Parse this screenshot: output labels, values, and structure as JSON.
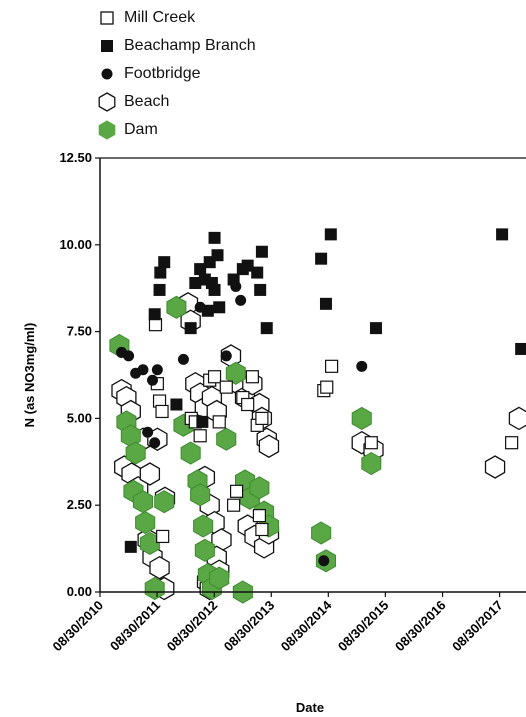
{
  "chart_data": {
    "type": "scatter",
    "xlabel": "Date",
    "ylabel": "N (as NO3mg/ml)",
    "ylim": [
      0,
      12.5
    ],
    "xlim": [
      "2010-08-30",
      "2018-02-15"
    ],
    "y_ticks": [
      "0.00",
      "2.50",
      "5.00",
      "7.50",
      "10.00",
      "12.50"
    ],
    "x_ticks": [
      "08/30/2010",
      "08/30/2011",
      "08/30/2012",
      "08/30/2013",
      "08/30/2014",
      "08/30/2015",
      "08/30/2016",
      "08/30/2017"
    ],
    "grid": false,
    "legend_position": "top-left",
    "series": [
      {
        "name": "Mill Creek",
        "marker": "open-square",
        "points": [
          [
            "2011-08-20",
            7.7
          ],
          [
            "2011-09-15",
            5.5
          ],
          [
            "2011-10-01",
            5.2
          ],
          [
            "2011-09-01",
            6.0
          ],
          [
            "2011-10-05",
            1.6
          ],
          [
            "2012-04-05",
            5.0
          ],
          [
            "2012-05-01",
            4.9
          ],
          [
            "2012-06-01",
            4.5
          ],
          [
            "2012-08-01",
            6.1
          ],
          [
            "2012-09-01",
            6.2
          ],
          [
            "2012-10-01",
            4.9
          ],
          [
            "2012-11-15",
            5.9
          ],
          [
            "2013-01-01",
            2.5
          ],
          [
            "2013-01-20",
            2.9
          ],
          [
            "2013-03-01",
            5.6
          ],
          [
            "2013-04-01",
            5.4
          ],
          [
            "2013-05-01",
            6.2
          ],
          [
            "2013-06-01",
            4.8
          ],
          [
            "2013-07-01",
            5.0
          ],
          [
            "2013-06-15",
            2.2
          ],
          [
            "2013-07-01",
            1.8
          ],
          [
            "2014-08-01",
            5.8
          ],
          [
            "2014-08-20",
            5.9
          ],
          [
            "2014-09-20",
            6.5
          ],
          [
            "2015-06-01",
            4.3
          ],
          [
            "2017-11-15",
            4.3
          ]
        ]
      },
      {
        "name": "Beachamp Branch",
        "marker": "filled-square",
        "points": [
          [
            "2011-03-15",
            1.3
          ],
          [
            "2011-08-15",
            8.0
          ],
          [
            "2011-09-15",
            8.7
          ],
          [
            "2011-10-15",
            9.5
          ],
          [
            "2011-09-20",
            9.2
          ],
          [
            "2012-01-01",
            5.4
          ],
          [
            "2012-04-01",
            7.6
          ],
          [
            "2012-05-01",
            8.9
          ],
          [
            "2012-06-01",
            9.3
          ],
          [
            "2012-07-01",
            9.0
          ],
          [
            "2012-08-01",
            9.5
          ],
          [
            "2012-09-01",
            10.2
          ],
          [
            "2012-09-20",
            9.7
          ],
          [
            "2012-08-15",
            8.9
          ],
          [
            "2012-07-20",
            8.1
          ],
          [
            "2012-10-01",
            8.2
          ],
          [
            "2012-09-01",
            8.7
          ],
          [
            "2012-06-15",
            4.9
          ],
          [
            "2013-01-01",
            9.0
          ],
          [
            "2013-03-01",
            9.3
          ],
          [
            "2013-04-01",
            9.4
          ],
          [
            "2013-06-01",
            9.2
          ],
          [
            "2013-07-01",
            9.8
          ],
          [
            "2013-06-20",
            8.7
          ],
          [
            "2013-08-01",
            7.6
          ],
          [
            "2014-07-15",
            9.6
          ],
          [
            "2014-08-15",
            8.3
          ],
          [
            "2014-09-15",
            10.3
          ],
          [
            "2015-07-01",
            7.6
          ],
          [
            "2017-09-15",
            10.3
          ],
          [
            "2018-01-15",
            7.0
          ]
        ]
      },
      {
        "name": "Footbridge",
        "marker": "filled-circle",
        "points": [
          [
            "2011-01-15",
            6.9
          ],
          [
            "2011-03-01",
            6.8
          ],
          [
            "2011-04-15",
            6.3
          ],
          [
            "2011-06-01",
            6.4
          ],
          [
            "2011-08-01",
            6.1
          ],
          [
            "2011-09-01",
            6.4
          ],
          [
            "2011-07-01",
            4.6
          ],
          [
            "2011-08-15",
            4.3
          ],
          [
            "2012-02-15",
            6.7
          ],
          [
            "2012-06-01",
            8.2
          ],
          [
            "2012-11-15",
            6.8
          ],
          [
            "2013-01-15",
            8.8
          ],
          [
            "2013-02-15",
            8.4
          ],
          [
            "2014-08-01",
            0.9
          ],
          [
            "2015-04-01",
            6.5
          ]
        ]
      },
      {
        "name": "Beach",
        "marker": "open-hexagon",
        "points": [
          [
            "2011-01-15",
            5.8
          ],
          [
            "2011-02-15",
            5.6
          ],
          [
            "2011-03-15",
            5.2
          ],
          [
            "2011-02-01",
            3.6
          ],
          [
            "2011-03-20",
            3.4
          ],
          [
            "2011-05-01",
            3.0
          ],
          [
            "2011-07-01",
            1.5
          ],
          [
            "2011-08-01",
            1.0
          ],
          [
            "2011-09-15",
            0.7
          ],
          [
            "2011-10-15",
            0.1
          ],
          [
            "2011-06-01",
            4.4
          ],
          [
            "2011-09-01",
            4.4
          ],
          [
            "2011-10-20",
            2.7
          ],
          [
            "2011-07-15",
            3.4
          ],
          [
            "2012-03-15",
            8.3
          ],
          [
            "2012-04-01",
            7.8
          ],
          [
            "2012-05-01",
            6.0
          ],
          [
            "2012-06-01",
            5.7
          ],
          [
            "2012-07-01",
            5.3
          ],
          [
            "2012-08-15",
            5.6
          ],
          [
            "2012-09-15",
            5.2
          ],
          [
            "2012-07-01",
            3.3
          ],
          [
            "2012-08-01",
            2.5
          ],
          [
            "2012-09-01",
            2.0
          ],
          [
            "2012-10-15",
            1.5
          ],
          [
            "2012-09-15",
            1.0
          ],
          [
            "2012-10-01",
            0.6
          ],
          [
            "2012-07-15",
            0.3
          ],
          [
            "2012-08-01",
            0.1
          ],
          [
            "2012-12-15",
            6.8
          ],
          [
            "2013-02-01",
            6.0
          ],
          [
            "2013-03-15",
            5.6
          ],
          [
            "2013-05-01",
            6.0
          ],
          [
            "2013-06-15",
            5.4
          ],
          [
            "2013-07-01",
            5.0
          ],
          [
            "2013-08-01",
            4.4
          ],
          [
            "2013-08-15",
            4.2
          ],
          [
            "2013-04-01",
            1.9
          ],
          [
            "2013-05-15",
            1.6
          ],
          [
            "2013-07-15",
            1.3
          ],
          [
            "2013-08-15",
            1.7
          ],
          [
            "2015-04-01",
            4.3
          ],
          [
            "2015-06-15",
            4.1
          ],
          [
            "2017-08-01",
            3.6
          ],
          [
            "2018-01-01",
            5.0
          ]
        ]
      },
      {
        "name": "Dam",
        "marker": "green-hexagon",
        "points": [
          [
            "2011-01-01",
            7.1
          ],
          [
            "2011-02-15",
            4.9
          ],
          [
            "2011-03-15",
            4.5
          ],
          [
            "2011-04-15",
            4.0
          ],
          [
            "2011-04-01",
            2.9
          ],
          [
            "2011-06-01",
            2.6
          ],
          [
            "2011-06-15",
            2.0
          ],
          [
            "2011-07-15",
            1.4
          ],
          [
            "2011-08-15",
            0.1
          ],
          [
            "2011-10-15",
            2.6
          ],
          [
            "2012-01-01",
            8.2
          ],
          [
            "2012-02-15",
            4.8
          ],
          [
            "2012-04-01",
            4.0
          ],
          [
            "2012-05-15",
            3.2
          ],
          [
            "2012-06-01",
            2.8
          ],
          [
            "2012-06-20",
            1.9
          ],
          [
            "2012-07-01",
            1.2
          ],
          [
            "2012-07-20",
            0.5
          ],
          [
            "2012-08-15",
            0.1
          ],
          [
            "2012-10-01",
            0.4
          ],
          [
            "2012-11-15",
            4.4
          ],
          [
            "2013-01-15",
            6.3
          ],
          [
            "2013-03-15",
            3.2
          ],
          [
            "2013-04-15",
            2.7
          ],
          [
            "2013-03-01",
            0.0
          ],
          [
            "2013-06-15",
            3.0
          ],
          [
            "2013-07-15",
            2.3
          ],
          [
            "2013-08-15",
            1.9
          ],
          [
            "2014-07-15",
            1.7
          ],
          [
            "2014-08-15",
            0.9
          ],
          [
            "2015-04-01",
            5.0
          ],
          [
            "2015-06-01",
            3.7
          ]
        ]
      }
    ]
  },
  "colors": {
    "dam_green": "#5aa845",
    "marker_black": "#111111",
    "axis": "#111111"
  }
}
